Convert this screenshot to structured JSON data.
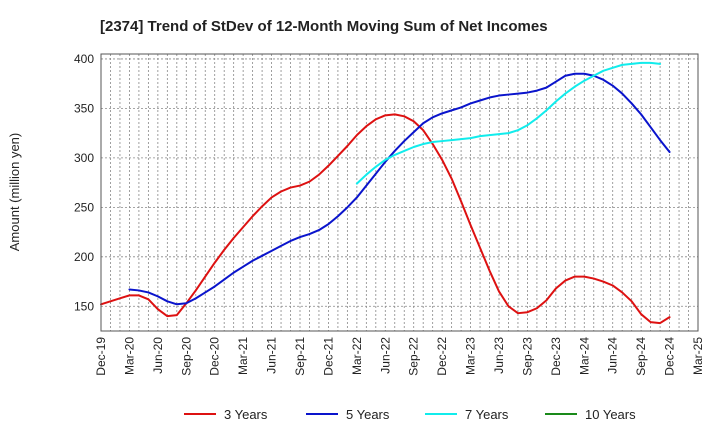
{
  "chart_data": {
    "type": "line",
    "title": "[2374]  Trend of StDev of 12-Month Moving Sum of Net Incomes",
    "ylabel": "Amount (million yen)",
    "xlabel": "",
    "ylim": [
      125,
      405
    ],
    "yticks": [
      150,
      200,
      250,
      300,
      350,
      400
    ],
    "grid": true,
    "legend_position": "bottom",
    "x_tick_labels": [
      "Dec-19",
      "Mar-20",
      "Jun-20",
      "Sep-20",
      "Dec-20",
      "Mar-21",
      "Jun-21",
      "Sep-21",
      "Dec-21",
      "Mar-22",
      "Jun-22",
      "Sep-22",
      "Dec-22",
      "Mar-23",
      "Jun-23",
      "Sep-23",
      "Dec-23",
      "Mar-24",
      "Jun-24",
      "Sep-24",
      "Dec-24",
      "Mar-25"
    ],
    "series": [
      {
        "name": "3 Years",
        "color": "#dd1111",
        "start_index": 0,
        "values": [
          152,
          155,
          158,
          161,
          161,
          157,
          147,
          140,
          141,
          153,
          166,
          180,
          194,
          207,
          219,
          230,
          241,
          251,
          260,
          266,
          270,
          272,
          276,
          283,
          292,
          302,
          312,
          323,
          332,
          339,
          343,
          344,
          342,
          337,
          328,
          314,
          298,
          279,
          256,
          232,
          209,
          186,
          165,
          150,
          143,
          144,
          148,
          156,
          168,
          176,
          180,
          180,
          178,
          175,
          171,
          164,
          155,
          142,
          134,
          133,
          139
        ]
      },
      {
        "name": "5 Years",
        "color": "#0a14cc",
        "start_index": 3,
        "values": [
          167,
          166,
          164,
          160,
          155,
          152,
          153,
          158,
          164,
          170,
          177,
          184,
          190,
          196,
          201,
          206,
          211,
          216,
          220,
          223,
          227,
          233,
          241,
          250,
          260,
          272,
          284,
          296,
          307,
          317,
          326,
          335,
          341,
          345,
          348,
          351,
          355,
          358,
          361,
          363,
          364,
          365,
          366,
          368,
          371,
          377,
          383,
          385,
          385,
          383,
          379,
          373,
          365,
          355,
          344,
          331,
          318,
          306
        ]
      },
      {
        "name": "7 Years",
        "color": "#11ecec",
        "start_index": 27,
        "values": [
          274,
          283,
          291,
          298,
          303,
          307,
          311,
          314,
          316,
          317,
          318,
          319,
          320,
          322,
          323,
          324,
          325,
          328,
          333,
          340,
          348,
          357,
          365,
          372,
          378,
          383,
          388,
          391,
          394,
          395,
          396,
          396,
          395
        ]
      },
      {
        "name": "10 Years",
        "color": "#1a8a1a",
        "start_index": 0,
        "values": []
      }
    ]
  }
}
